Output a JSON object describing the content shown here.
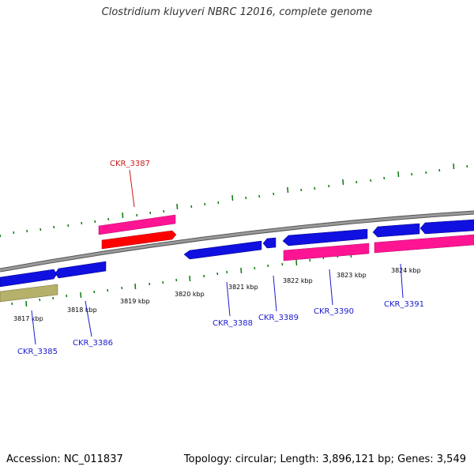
{
  "title": "Clostridium kluyveri NBRC 12016, complete genome",
  "footer": {
    "accession": "Accession: NC_011837",
    "stats": "Topology: circular; Length: 3,896,121 bp; Genes: 3,549"
  },
  "kbp_labels": [
    "3817 kbp",
    "3818 kbp",
    "3819 kbp",
    "3820 kbp",
    "3821 kbp",
    "3822 kbp",
    "3823 kbp",
    "3824 kbp"
  ],
  "gene_labels": {
    "g3385": "CKR_3385",
    "g3386": "CKR_3386",
    "g3387": "CKR_3387",
    "g3388": "CKR_3388",
    "g3389": "CKR_3389",
    "g3390": "CKR_3390",
    "g3391": "CKR_3391"
  },
  "colors": {
    "backbone": "#8a8a8a",
    "cds_blue": "#1010e0",
    "gene_pink": "#ff1493",
    "gene_red": "#ff0000",
    "gene_olive": "#b5b06a",
    "tick_green": "#0a7a0a",
    "label_blue": "#1a1ad0",
    "label_red": "#d01a1a"
  }
}
